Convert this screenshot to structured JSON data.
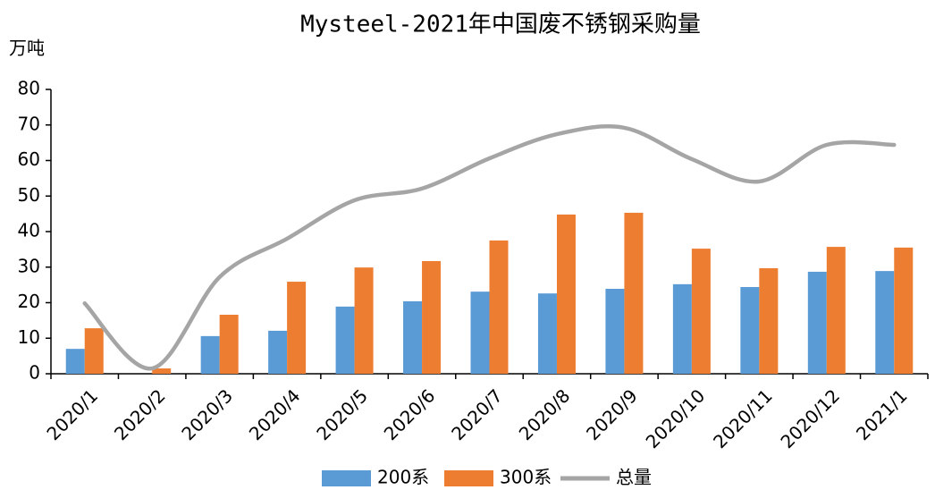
{
  "chart_data": {
    "type": "bar_line",
    "title": "Mysteel-2021年中国废不锈钢采购量",
    "y_label": "万吨",
    "categories": [
      "2020/1",
      "2020/2",
      "2020/3",
      "2020/4",
      "2020/5",
      "2020/6",
      "2020/7",
      "2020/8",
      "2020/9",
      "2020/10",
      "2020/11",
      "2020/12",
      "2021/1"
    ],
    "series": [
      {
        "name": "200系",
        "color": "#5b9bd5",
        "kind": "bar",
        "values": [
          7.0,
          0,
          10.6,
          12.1,
          18.9,
          20.4,
          23.1,
          22.6,
          23.9,
          25.2,
          24.4,
          28.7,
          28.9
        ]
      },
      {
        "name": "300系",
        "color": "#ed7d31",
        "kind": "bar",
        "values": [
          12.8,
          1.5,
          16.6,
          25.9,
          29.9,
          31.7,
          37.5,
          44.8,
          45.3,
          35.2,
          29.7,
          35.7,
          35.5
        ]
      },
      {
        "name": "总量",
        "color": "#a5a5a5",
        "kind": "line",
        "values": [
          19.8,
          1.5,
          27.2,
          38.0,
          48.8,
          52.1,
          60.6,
          67.4,
          69.2,
          60.4,
          54.1,
          64.4,
          64.4
        ]
      }
    ],
    "ylim": [
      0,
      80
    ],
    "yticks": [
      0,
      10,
      20,
      30,
      40,
      50,
      60,
      70,
      80
    ],
    "grid": false
  }
}
